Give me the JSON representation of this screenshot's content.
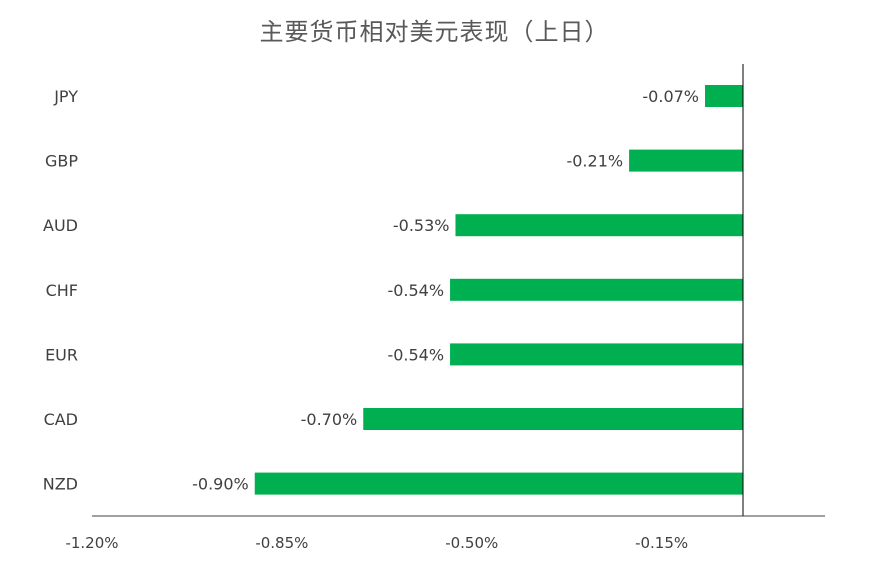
{
  "chart_data": {
    "type": "bar",
    "orientation": "horizontal",
    "title": "主要货币相对美元表现（上日）",
    "xlabel": "",
    "ylabel": "",
    "categories": [
      "JPY",
      "GBP",
      "AUD",
      "CHF",
      "EUR",
      "CAD",
      "NZD"
    ],
    "values": [
      -0.07,
      -0.21,
      -0.53,
      -0.54,
      -0.54,
      -0.7,
      -0.9
    ],
    "value_labels": [
      "-0.07%",
      "-0.21%",
      "-0.53%",
      "-0.54%",
      "-0.54%",
      "-0.70%",
      "-0.90%"
    ],
    "xlim": [
      -1.2,
      0.15
    ],
    "xticks": [
      -1.2,
      -0.85,
      -0.5,
      -0.15
    ],
    "xtick_labels": [
      "-1.20%",
      "-0.85%",
      "-0.50%",
      "-0.15%"
    ],
    "grid": false,
    "legend": "none",
    "bar_color": "#00B050"
  }
}
